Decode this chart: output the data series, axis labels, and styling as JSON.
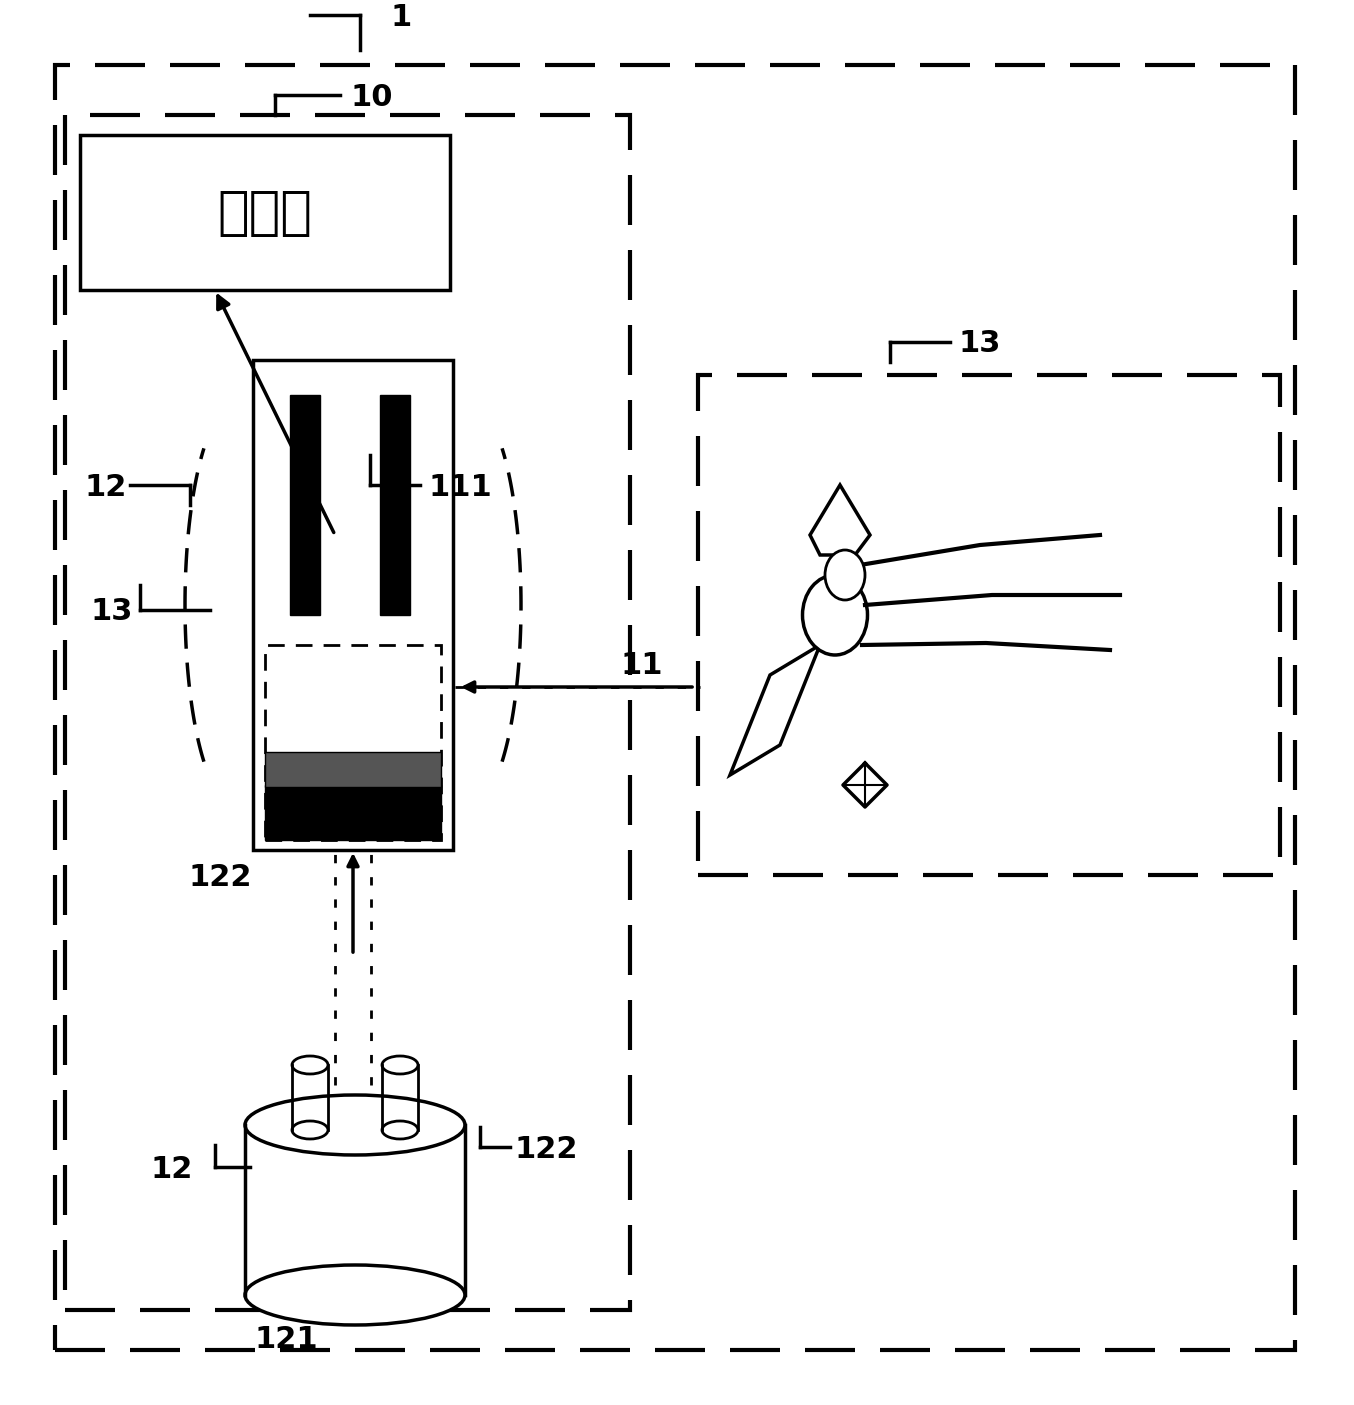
{
  "bg": "#ffffff",
  "sensor_text": "感测器",
  "lbl_1": "1",
  "lbl_10": "10",
  "lbl_11": "11",
  "lbl_111": "111",
  "lbl_12a": "12",
  "lbl_12b": "12",
  "lbl_121": "121",
  "lbl_122a": "122",
  "lbl_122b": "122",
  "lbl_13a": "13",
  "lbl_13b": "13",
  "figw": 13.54,
  "figh": 14.05,
  "dpi": 100
}
